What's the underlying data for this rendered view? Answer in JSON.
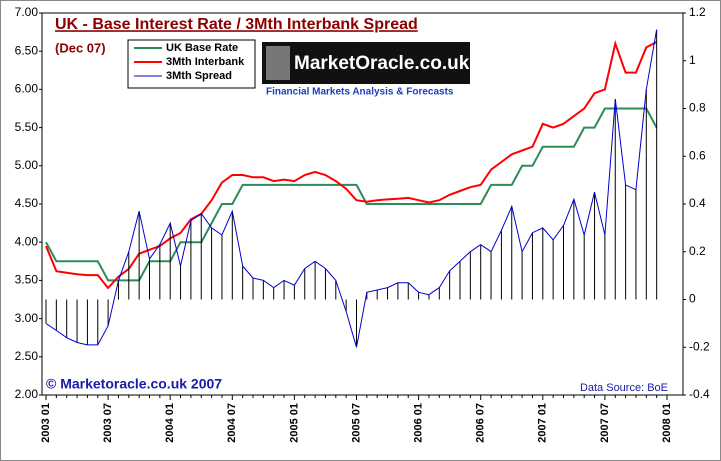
{
  "chart_data": {
    "type": "line",
    "title": "UK - Base Interest Rate / 3Mth Interbank Spread",
    "subtitle": "(Dec 07)",
    "annotations": {
      "copyright": "© Marketoracle.co.uk 2007",
      "source": "Data Source: BoE",
      "logo": "MarketOracle.co.uk",
      "logo_tagline": "Financial Markets Analysis & Forecasts"
    },
    "categories": [
      "2003 01",
      null,
      null,
      null,
      null,
      null,
      "2003 07",
      null,
      null,
      null,
      null,
      null,
      "2004 01",
      null,
      null,
      null,
      null,
      null,
      "2004 07",
      null,
      null,
      null,
      null,
      null,
      "2005 01",
      null,
      null,
      null,
      null,
      null,
      "2005 07",
      null,
      null,
      null,
      null,
      null,
      "2006 01",
      null,
      null,
      null,
      null,
      null,
      "2006 07",
      null,
      null,
      null,
      null,
      null,
      "2007 01",
      null,
      null,
      null,
      null,
      null,
      "2007 07",
      null,
      null,
      null,
      null,
      null,
      "2008 01"
    ],
    "series": [
      {
        "name": "UK Base Rate",
        "color": "#2e8b57",
        "values": [
          4.0,
          3.75,
          3.75,
          3.75,
          3.75,
          3.75,
          3.5,
          3.5,
          3.5,
          3.5,
          3.75,
          3.75,
          3.75,
          4.0,
          4.0,
          4.0,
          4.25,
          4.5,
          4.5,
          4.75,
          4.75,
          4.75,
          4.75,
          4.75,
          4.75,
          4.75,
          4.75,
          4.75,
          4.75,
          4.75,
          4.75,
          4.5,
          4.5,
          4.5,
          4.5,
          4.5,
          4.5,
          4.5,
          4.5,
          4.5,
          4.5,
          4.5,
          4.5,
          4.75,
          4.75,
          4.75,
          5.0,
          5.0,
          5.25,
          5.25,
          5.25,
          5.25,
          5.5,
          5.5,
          5.75,
          5.75,
          5.75,
          5.75,
          5.75,
          5.5,
          null
        ]
      },
      {
        "name": "3Mth Interbank",
        "color": "#ff0000",
        "values": [
          3.95,
          3.62,
          3.6,
          3.58,
          3.57,
          3.57,
          3.4,
          3.55,
          3.65,
          3.85,
          3.9,
          3.95,
          4.05,
          4.12,
          4.3,
          4.37,
          4.55,
          4.78,
          4.88,
          4.88,
          4.85,
          4.85,
          4.8,
          4.82,
          4.8,
          4.88,
          4.92,
          4.88,
          4.8,
          4.7,
          4.55,
          4.53,
          4.55,
          4.56,
          4.57,
          4.58,
          4.55,
          4.52,
          4.55,
          4.62,
          4.67,
          4.72,
          4.75,
          4.95,
          5.05,
          5.15,
          5.2,
          5.25,
          5.55,
          5.5,
          5.55,
          5.65,
          5.75,
          5.95,
          6.0,
          6.6,
          6.22,
          6.22,
          6.55,
          6.62,
          null
        ]
      },
      {
        "name": "3Mth Spread",
        "color": "#0000cc",
        "axis": "y2",
        "values": [
          -0.1,
          -0.13,
          -0.16,
          -0.18,
          -0.19,
          -0.19,
          -0.11,
          0.08,
          0.2,
          0.37,
          0.17,
          0.23,
          0.32,
          0.14,
          0.33,
          0.36,
          0.3,
          0.27,
          0.37,
          0.14,
          0.09,
          0.08,
          0.05,
          0.08,
          0.06,
          0.13,
          0.16,
          0.13,
          0.08,
          -0.05,
          -0.2,
          0.03,
          0.04,
          0.05,
          0.07,
          0.07,
          0.03,
          0.02,
          0.05,
          0.12,
          0.16,
          0.2,
          0.23,
          0.2,
          0.29,
          0.39,
          0.2,
          0.28,
          0.3,
          0.25,
          0.31,
          0.42,
          0.27,
          0.45,
          0.27,
          0.84,
          0.48,
          0.46,
          0.88,
          1.13,
          null
        ]
      }
    ],
    "ylim": [
      2,
      7
    ],
    "yticks": [
      {
        "value": 2,
        "label": "2.00"
      },
      {
        "value": 2.5,
        "label": "2.50"
      },
      {
        "value": 3,
        "label": "3.00"
      },
      {
        "value": 3.5,
        "label": "3.50"
      },
      {
        "value": 4,
        "label": "4.00"
      },
      {
        "value": 4.5,
        "label": "4.50"
      },
      {
        "value": 5,
        "label": "5.00"
      },
      {
        "value": 5.5,
        "label": "5.50"
      },
      {
        "value": 6,
        "label": "6.00"
      },
      {
        "value": 6.5,
        "label": "6.50"
      },
      {
        "value": 7,
        "label": "7.00"
      }
    ],
    "y2lim": [
      -0.4,
      1.2
    ],
    "y2ticks": [
      -0.4,
      -0.2,
      0,
      0.2,
      0.4,
      0.6,
      0.8,
      1,
      1.2
    ],
    "grid": false,
    "legend": "top-left"
  }
}
